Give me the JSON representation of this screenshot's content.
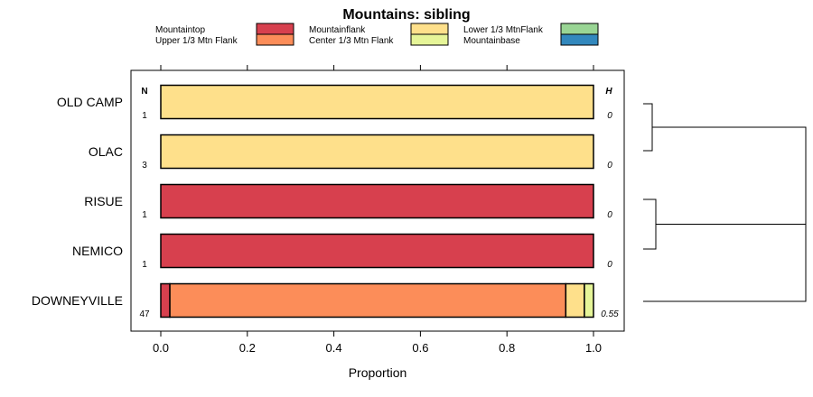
{
  "chart_data": {
    "type": "bar",
    "orientation": "horizontal",
    "stacked": true,
    "title": "Mountains: sibling",
    "xlabel": "Proportion",
    "ylabel": "",
    "xlim": [
      0,
      1
    ],
    "xticks": [
      "0.0",
      "0.2",
      "0.4",
      "0.6",
      "0.8",
      "1.0"
    ],
    "n_header": "N",
    "h_header": "H",
    "legend_position": "top",
    "categories": [
      "OLD CAMP",
      "OLAC",
      "RISUE",
      "NEMICO",
      "DOWNEYVILLE"
    ],
    "n": [
      "1",
      "3",
      "1",
      "1",
      "47"
    ],
    "h": [
      "0",
      "0",
      "0",
      "0",
      "0.55"
    ],
    "series": [
      {
        "name": "Mountaintop",
        "color": "#d7404e",
        "values": [
          0,
          0,
          1,
          1,
          0.021
        ]
      },
      {
        "name": "Upper 1/3 Mtn Flank",
        "color": "#fc8d59",
        "values": [
          0,
          0,
          0,
          0,
          0.915
        ]
      },
      {
        "name": "Mountainflank",
        "color": "#fee08b",
        "values": [
          1,
          1,
          0,
          0,
          0.043
        ]
      },
      {
        "name": "Center 1/3 Mtn Flank",
        "color": "#e6f598",
        "values": [
          0,
          0,
          0,
          0,
          0.021
        ]
      },
      {
        "name": "Lower 1/3 MtnFlank",
        "color": "#99d594",
        "values": [
          0,
          0,
          0,
          0,
          0
        ]
      },
      {
        "name": "Mountainbase",
        "color": "#3288bd",
        "values": [
          0,
          0,
          0,
          0,
          0
        ]
      }
    ],
    "dendrogram": [
      {
        "left": 0,
        "right": 1
      },
      {
        "left": 2,
        "right": 3
      },
      {
        "left": "cluster0",
        "right": "cluster1"
      },
      {
        "left": "cluster2",
        "right": 4
      }
    ]
  }
}
